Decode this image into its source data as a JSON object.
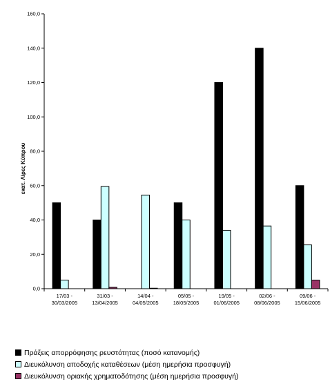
{
  "chart_data": {
    "type": "bar",
    "ylabel": "εκατ. Λίρες Κύπρου",
    "ylim": [
      0,
      160
    ],
    "yticks": [
      "0,0",
      "20,0",
      "40,0",
      "60,0",
      "80,0",
      "100,0",
      "120,0",
      "140,0",
      "160,0"
    ],
    "categories": [
      [
        "17/03 -",
        "30/03/2005"
      ],
      [
        "31/03 -",
        "13/04/2005"
      ],
      [
        "14/04 -",
        "04/05/2005"
      ],
      [
        "05/05 -",
        "18/05/2005"
      ],
      [
        "19/05 -",
        "01/06/2005"
      ],
      [
        "02/06 -",
        "08/06/2005"
      ],
      [
        "09/06 -",
        "15/06/2005"
      ]
    ],
    "series": [
      {
        "name": "Πράξεις απορρόφησης ρευστότητας (ποσό κατανομής)",
        "color": "#000000",
        "values": [
          50,
          40,
          0,
          50,
          120,
          140,
          60
        ]
      },
      {
        "name": "Διευκόλυνση αποδοχής καταθέσεων (μέση ημερήσια προσφυγή)",
        "color": "#ccffff",
        "values": [
          5,
          59.5,
          54.5,
          40,
          34,
          36.5,
          25.5
        ]
      },
      {
        "name": "Διευκόλυνση οριακής χρηματοδότησης (μέση ημερήσια προσφυγή)",
        "color": "#993366",
        "values": [
          0,
          0.8,
          0.3,
          0,
          0,
          0,
          5
        ]
      }
    ],
    "legend": "bottom",
    "grid": false
  }
}
